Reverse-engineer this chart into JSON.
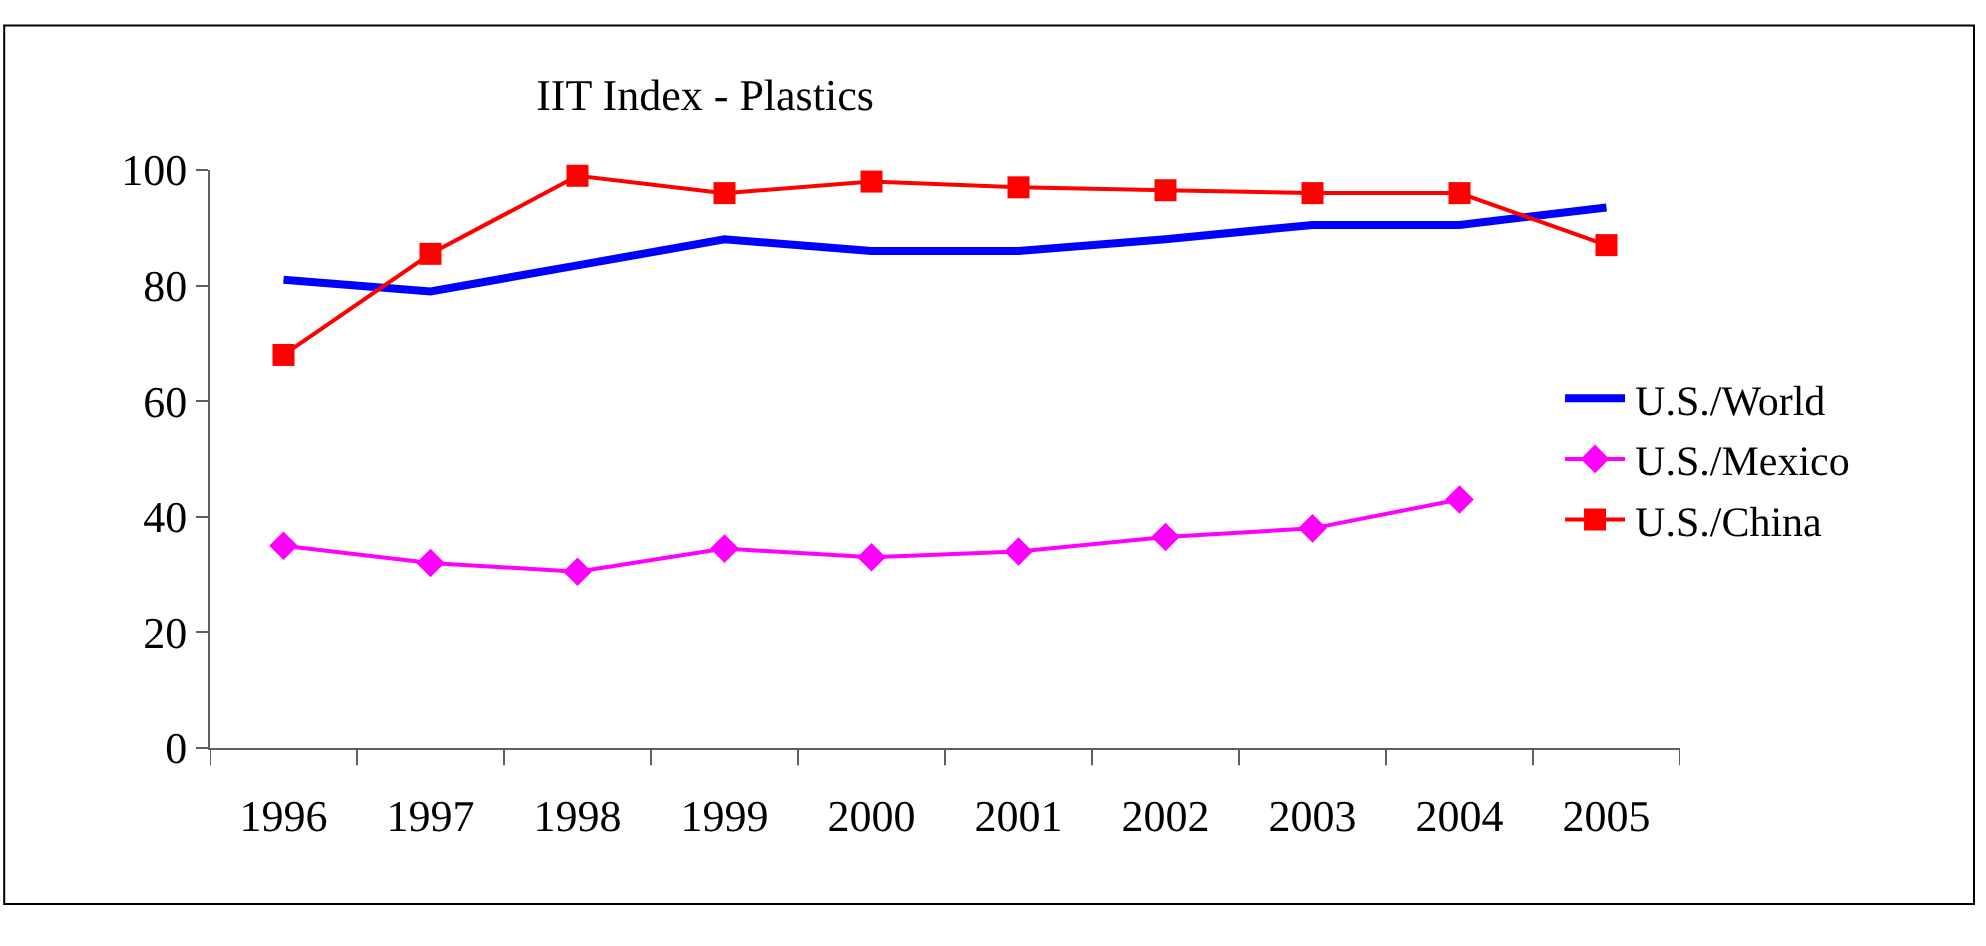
{
  "chart_data": {
    "type": "line",
    "title": "IIT Index - Plastics",
    "categories": [
      "1996",
      "1997",
      "1998",
      "1999",
      "2000",
      "2001",
      "2002",
      "2003",
      "2004",
      "2005"
    ],
    "series": [
      {
        "name": "U.S./World",
        "color": "#0000ff",
        "marker": "none",
        "values": [
          81,
          79,
          83.5,
          88,
          86,
          86,
          88,
          90.5,
          90.5,
          93.5
        ]
      },
      {
        "name": "U.S./Mexico",
        "color": "#ff00ff",
        "marker": "diamond",
        "values": [
          35,
          32,
          30.5,
          34.5,
          33,
          34,
          36.5,
          38,
          43,
          null
        ]
      },
      {
        "name": "U.S./China",
        "color": "#ff0000",
        "marker": "square",
        "values": [
          68,
          85.5,
          99,
          96,
          98,
          97,
          96.5,
          96,
          96,
          87
        ]
      }
    ],
    "ylim": [
      0,
      100
    ],
    "yticks": [
      0,
      20,
      40,
      60,
      80,
      100
    ],
    "legend": "right"
  }
}
